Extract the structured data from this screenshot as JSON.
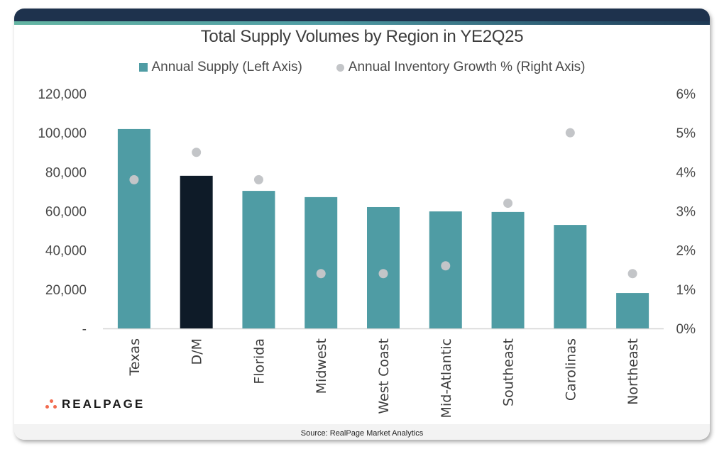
{
  "source": "Source: RealPage Market Analytics",
  "logo": {
    "text": "REALPAGE",
    "icon": "realpage-dots-logo-icon"
  },
  "colors": {
    "header": "#1e324d",
    "bar": "#4f9ca4",
    "bar_highlight": "#0e1b28",
    "dot": "#c3c5c8",
    "logo_accent": "#f26b4f"
  },
  "chart_data": {
    "type": "bar",
    "title": "Total Supply Volumes by Region in YE2Q25",
    "xlabel": "",
    "ylabel": "",
    "y2label": "",
    "legend_position": "top-center",
    "grid": false,
    "categories": [
      "Texas",
      "D/M",
      "Florida",
      "Midwest",
      "West Coast",
      "Mid-Atlantic",
      "Southeast",
      "Carolinas",
      "Northeast"
    ],
    "highlight_category": "D/M",
    "series": [
      {
        "name": "Annual Supply (Left Axis)",
        "type": "bar",
        "axis": "left",
        "values": [
          101900,
          78000,
          70300,
          67100,
          62000,
          59800,
          59500,
          52900,
          18100
        ]
      },
      {
        "name": "Annual Inventory Growth % (Right Axis)",
        "type": "scatter",
        "axis": "right",
        "values": [
          3.8,
          4.5,
          3.8,
          1.4,
          1.4,
          1.6,
          3.2,
          5.0,
          1.4
        ]
      }
    ],
    "ylim": [
      0,
      120000
    ],
    "y_ticks": [
      0,
      20000,
      40000,
      60000,
      80000,
      100000,
      120000
    ],
    "y_tick_labels": [
      "-",
      "20,000",
      "40,000",
      "60,000",
      "80,000",
      "100,000",
      "120,000"
    ],
    "y2lim": [
      0,
      6
    ],
    "y2_ticks": [
      0,
      1,
      2,
      3,
      4,
      5,
      6
    ],
    "y2_tick_labels": [
      "0%",
      "1%",
      "2%",
      "3%",
      "4%",
      "5%",
      "6%"
    ]
  }
}
